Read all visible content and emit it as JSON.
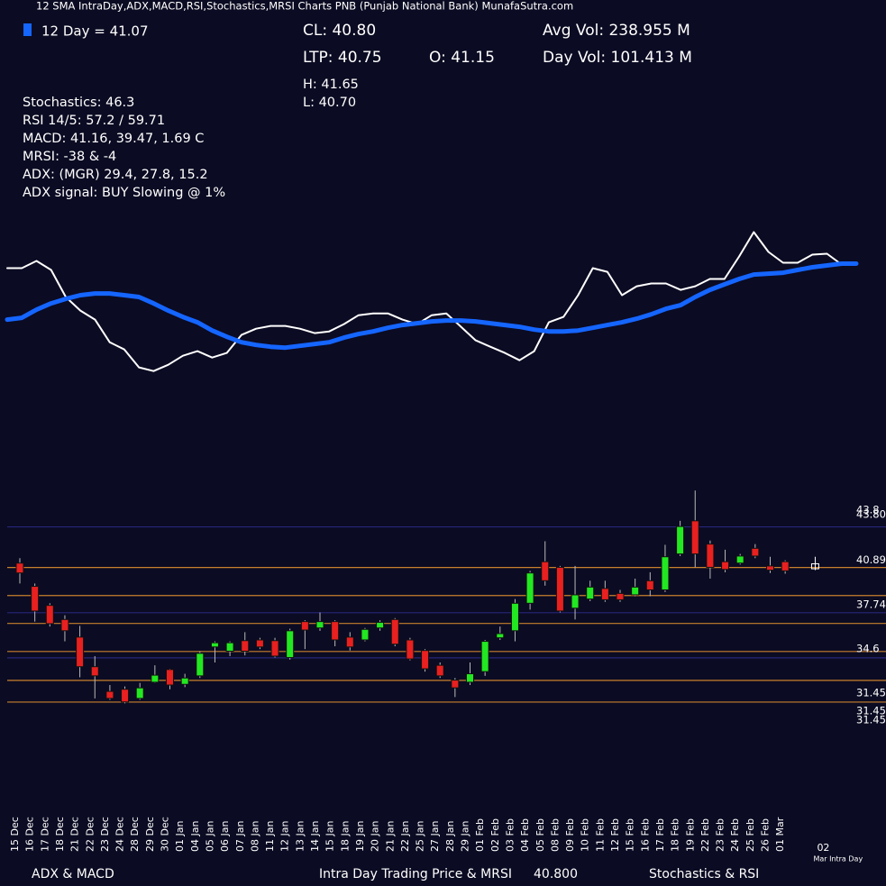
{
  "header": {
    "title": "12 SMA IntraDay,ADX,MACD,RSI,Stochastics,MRSI Charts PNB (Punjab National Bank) MunafaSutra.com",
    "stats": [
      "CL: 40.80",
      "LTP: 40.75",
      "O: 41.15",
      "H: 41.65",
      "L: 40.70",
      "Avg Vol: 238.955 M",
      "Day Vol: 101.413 M"
    ],
    "indicators": [
      "Stochastics: 46.3",
      "RSI 14/5: 57.2 / 59.71",
      "MACD: 41.16, 39.47, 1.69 C",
      "MRSI: -38 & -4",
      "ADX: (MGR) 29.4, 27.8, 15.2",
      "ADX signal: BUY Slowing @ 1%"
    ]
  },
  "footer": [
    "ADX & MACD",
    "Intra Day Trading Price & MRSI",
    "40.800",
    "Stochastics & RSI"
  ],
  "chart_data": [
    {
      "type": "line",
      "ylim": [
        30,
        45.3
      ],
      "series": [
        {
          "color": "#ffffff",
          "values": [
            40.67,
            40.67,
            41.31,
            40.51,
            38.09,
            36.88,
            36.07,
            34.05,
            33.41,
            31.8,
            31.47,
            32.04,
            32.84,
            33.25,
            32.68,
            33.09,
            34.7,
            35.26,
            35.51,
            35.51,
            35.26,
            34.86,
            35.02,
            35.67,
            36.47,
            36.63,
            36.63,
            36.07,
            35.67,
            36.47,
            36.63,
            35.43,
            34.22,
            33.65,
            33.09,
            32.44,
            33.25,
            35.83,
            36.31,
            38.25,
            40.67,
            40.34,
            38.25,
            39.05,
            39.3,
            39.3,
            38.73,
            39.05,
            39.7,
            39.7,
            41.72,
            43.89,
            42.12,
            41.15,
            41.15,
            41.88,
            41.96,
            40.99,
            40.99
          ]
        },
        {
          "name": "12 Day = 41.07",
          "color": "#1565ff",
          "values": [
            36.07,
            36.23,
            36.96,
            37.52,
            37.92,
            38.25,
            38.41,
            38.41,
            38.25,
            38.09,
            37.52,
            36.88,
            36.31,
            35.83,
            35.1,
            34.54,
            34.05,
            33.81,
            33.65,
            33.57,
            33.73,
            33.89,
            34.05,
            34.46,
            34.78,
            35.02,
            35.34,
            35.59,
            35.75,
            35.91,
            35.99,
            35.99,
            35.91,
            35.75,
            35.59,
            35.43,
            35.18,
            35.02,
            35.02,
            35.1,
            35.34,
            35.59,
            35.83,
            36.15,
            36.55,
            37.04,
            37.36,
            38.09,
            38.73,
            39.22,
            39.7,
            40.1,
            40.18,
            40.26,
            40.51,
            40.75,
            40.91,
            41.07,
            41.07
          ]
        }
      ]
    },
    {
      "type": "candlestick",
      "categories": [
        "15 Dec",
        "16 Dec",
        "17 Dec",
        "18 Dec",
        "21 Dec",
        "22 Dec",
        "23 Dec",
        "24 Dec",
        "28 Dec",
        "29 Dec",
        "30 Dec",
        "01 Jan",
        "04 Jan",
        "05 Jan",
        "06 Jan",
        "07 Jan",
        "08 Jan",
        "11 Jan",
        "12 Jan",
        "13 Jan",
        "14 Jan",
        "15 Jan",
        "18 Jan",
        "19 Jan",
        "20 Jan",
        "21 Jan",
        "22 Jan",
        "25 Jan",
        "27 Jan",
        "28 Jan",
        "29 Jan",
        "01 Feb",
        "02 Feb",
        "03 Feb",
        "04 Feb",
        "05 Feb",
        "08 Feb",
        "09 Feb",
        "10 Feb",
        "11 Feb",
        "12 Feb",
        "15 Feb",
        "16 Feb",
        "17 Feb",
        "18 Feb",
        "19 Feb",
        "22 Feb",
        "23 Feb",
        "24 Feb",
        "25 Feb",
        "26 Feb",
        "01 Mar",
        "02"
      ],
      "intraday_note": "Mar Intra Day",
      "open": [
        41.2,
        39.55,
        38.2,
        37.2,
        35.95,
        33.85,
        32.1,
        32.25,
        31.6,
        32.75,
        33.65,
        32.6,
        33.2,
        35.25,
        34.95,
        35.7,
        35.75,
        35.7,
        34.5,
        37.05,
        36.6,
        37.05,
        35.95,
        35.75,
        36.6,
        37.2,
        35.75,
        35.0,
        33.95,
        32.9,
        32.75,
        33.5,
        35.9,
        36.4,
        38.35,
        41.3,
        40.9,
        38.0,
        38.65,
        39.4,
        39.05,
        38.95,
        39.95,
        39.3,
        41.85,
        44.2,
        42.55,
        41.3,
        41.2,
        42.25,
        41.0,
        41.3,
        41.15
      ],
      "high": [
        41.55,
        39.75,
        38.35,
        37.5,
        36.75,
        34.6,
        32.55,
        32.45,
        32.7,
        33.95,
        33.7,
        33.35,
        34.95,
        35.65,
        35.65,
        36.3,
        35.9,
        35.9,
        36.55,
        37.15,
        37.7,
        37.15,
        36.3,
        36.6,
        37.15,
        37.3,
        35.9,
        35.1,
        34.15,
        33.05,
        34.15,
        35.75,
        36.7,
        38.65,
        40.65,
        42.75,
        41.0,
        41.0,
        39.95,
        39.95,
        39.3,
        40.1,
        40.55,
        42.5,
        44.2,
        46.35,
        42.8,
        42.15,
        41.85,
        42.55,
        41.65,
        41.4,
        41.65
      ],
      "low": [
        39.75,
        37.05,
        36.7,
        35.65,
        33.1,
        31.6,
        31.5,
        31.25,
        31.5,
        32.7,
        32.25,
        32.4,
        33.05,
        34.15,
        34.6,
        34.65,
        35.1,
        34.5,
        34.35,
        35.1,
        36.4,
        35.3,
        35.0,
        35.65,
        36.4,
        35.3,
        34.3,
        33.5,
        33.05,
        31.7,
        32.55,
        33.2,
        35.75,
        35.65,
        37.9,
        39.6,
        37.7,
        37.2,
        38.5,
        38.45,
        38.45,
        38.85,
        38.85,
        39.15,
        41.7,
        40.9,
        40.1,
        40.55,
        41.1,
        41.55,
        40.5,
        40.45,
        40.7
      ],
      "close": [
        40.5,
        37.8,
        36.9,
        36.4,
        33.85,
        33.2,
        31.6,
        31.35,
        32.35,
        33.25,
        32.55,
        33.05,
        34.8,
        35.55,
        35.55,
        34.95,
        35.25,
        34.6,
        36.4,
        36.45,
        37.05,
        35.75,
        35.25,
        36.5,
        37.0,
        35.45,
        34.4,
        33.7,
        33.2,
        32.35,
        33.35,
        35.65,
        36.2,
        38.35,
        40.5,
        39.95,
        37.8,
        38.95,
        39.5,
        38.6,
        38.6,
        39.5,
        39.3,
        41.65,
        43.8,
        41.85,
        40.9,
        40.75,
        41.7,
        41.7,
        40.7,
        40.65,
        40.8
      ],
      "up_color": "#22e822",
      "down_color": "#e82020",
      "intraday_color": "#ffffff",
      "ylim": [
        23.6,
        46.3
      ],
      "yticks": [
        43.8,
        {
          "value": 43.8,
          "label": "43.80"
        },
        40.89,
        37.74,
        34.6,
        31.45,
        31.45,
        31.45
      ],
      "levels": [
        {
          "value": 43.77,
          "color": "#26267a"
        },
        {
          "value": 37.68,
          "color": "#26267a"
        },
        {
          "value": 34.48,
          "color": "#26267a"
        },
        {
          "value": 40.89,
          "color": "#c8802c"
        },
        {
          "value": 38.9,
          "color": "#c8802c"
        },
        {
          "value": 36.92,
          "color": "#c8802c"
        },
        {
          "value": 34.93,
          "color": "#c8802c"
        },
        {
          "value": 32.88,
          "color": "#c8802c"
        },
        {
          "value": 31.34,
          "color": "#c8802c"
        }
      ]
    }
  ]
}
